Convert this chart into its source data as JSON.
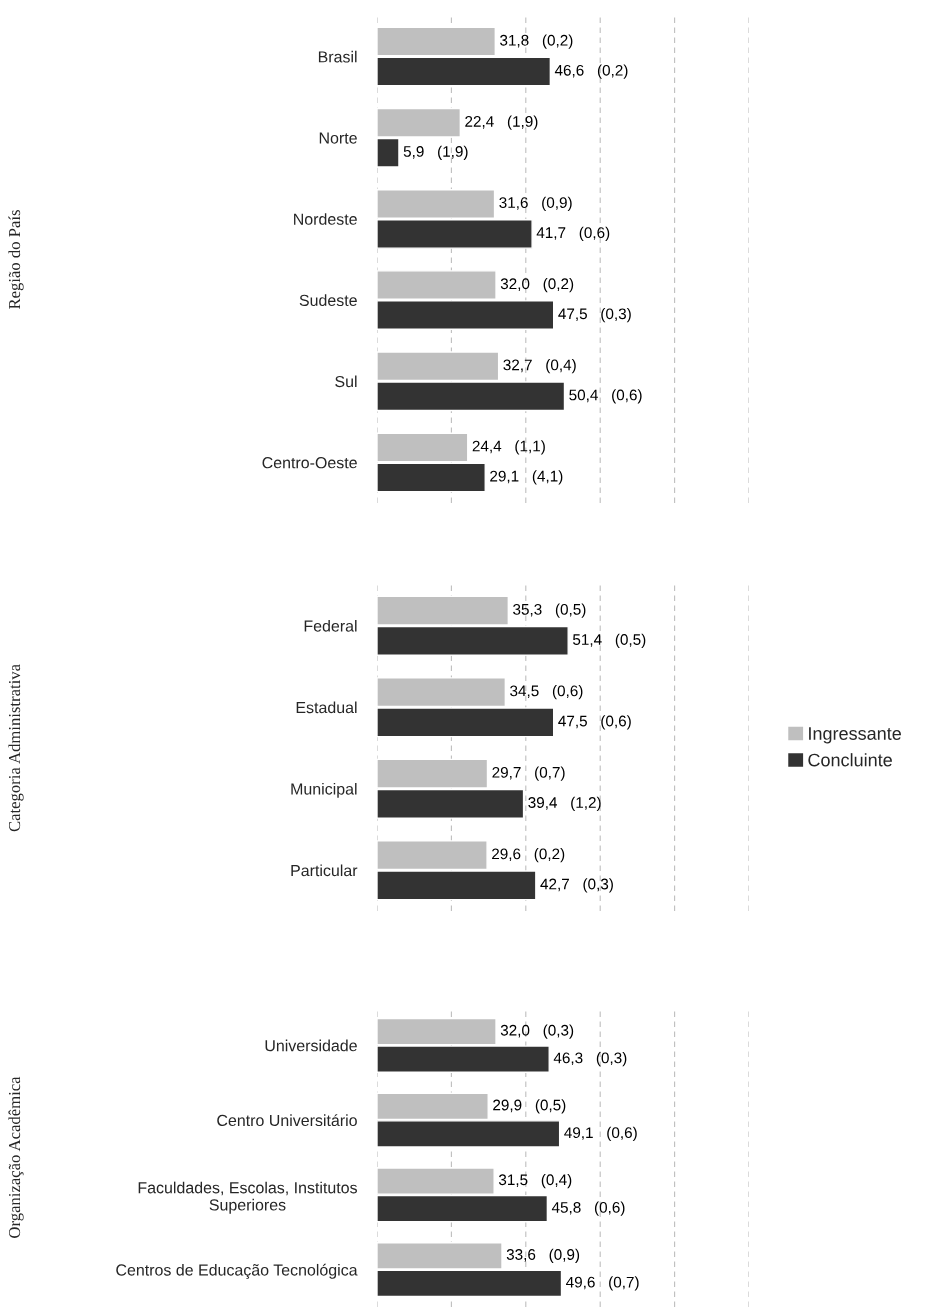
{
  "chart_data": [
    {
      "type": "bar",
      "orientation": "horizontal",
      "ylabel": "Região do País",
      "categories": [
        "Brasil",
        "Norte",
        "Nordeste",
        "Sudeste",
        "Sul",
        "Centro-Oeste"
      ],
      "xlim": [
        0,
        100
      ],
      "xticks": [
        {
          "value": 0,
          "label": null
        },
        {
          "value": 20,
          "label": null
        },
        {
          "value": 40,
          "label": null
        },
        {
          "value": 60,
          "label": null
        },
        {
          "value": 80,
          "label": null
        },
        {
          "value": 100,
          "label": null
        }
      ],
      "grid": "x",
      "tick_labels": "y",
      "series": [
        {
          "color": "#bfbfbf",
          "values": [
            31.8,
            22.4,
            31.6,
            32.0,
            32.7,
            24.4
          ],
          "value_labels": [
            "31,8   (0,2)",
            "22,4   (1,9)",
            "31,6   (0,9)",
            "32,0   (0,2)",
            "32,7   (0,4)",
            "24,4   (1,1)"
          ]
        },
        {
          "color": "#333333",
          "values": [
            46.6,
            5.9,
            41.7,
            47.5,
            50.4,
            29.1
          ],
          "value_labels": [
            "46,6   (0,2)",
            "5,9   (1,9)",
            "41,7   (0,6)",
            "47,5   (0,3)",
            "50,4   (0,6)",
            "29,1   (4,1)"
          ]
        }
      ]
    },
    {
      "type": "bar",
      "orientation": "horizontal",
      "ylabel": "Categoria Administrativa",
      "categories": [
        "Federal",
        "Estadual",
        "Municipal",
        "Particular"
      ],
      "xlim": [
        0,
        100
      ],
      "xticks": [
        {
          "value": 0,
          "label": null
        },
        {
          "value": 20,
          "label": null
        },
        {
          "value": 40,
          "label": null
        },
        {
          "value": 60,
          "label": null
        },
        {
          "value": 80,
          "label": null
        },
        {
          "value": 100,
          "label": null
        }
      ],
      "grid": "x",
      "tick_labels": "y",
      "legend": "right",
      "series": [
        {
          "name": "Ingressante",
          "color": "#bfbfbf",
          "values": [
            35.3,
            34.5,
            29.7,
            29.6
          ],
          "value_labels": [
            "35,3   (0,5)",
            "34,5   (0,6)",
            "29,7   (0,7)",
            "29,6   (0,2)"
          ]
        },
        {
          "name": "Concluinte",
          "color": "#333333",
          "values": [
            51.4,
            47.5,
            39.4,
            42.7
          ],
          "value_labels": [
            "51,4   (0,5)",
            "47,5   (0,6)",
            "39,4   (1,2)",
            "42,7   (0,3)"
          ]
        }
      ]
    },
    {
      "type": "bar",
      "orientation": "horizontal",
      "ylabel": "Organização Acadêmica",
      "categories": [
        "Universidade",
        "Centro Universitário",
        "Faculdades, Escolas, Institutos\nSuperiores",
        "Centros de Educação Tecnológica"
      ],
      "xlim": [
        0,
        100
      ],
      "xticks": [
        {
          "value": 0,
          "label": null
        },
        {
          "value": 20,
          "label": null
        },
        {
          "value": 40,
          "label": null
        },
        {
          "value": 60,
          "label": null
        },
        {
          "value": 80,
          "label": null
        },
        {
          "value": 100,
          "label": null
        }
      ],
      "grid": "x",
      "tick_labels": "y",
      "series": [
        {
          "color": "#bfbfbf",
          "values": [
            32.0,
            29.9,
            31.5,
            33.6
          ],
          "value_labels": [
            "32,0   (0,3)",
            "29,9   (0,5)",
            "31,5   (0,4)",
            "33,6   (0,9)"
          ]
        },
        {
          "color": "#333333",
          "values": [
            46.3,
            49.1,
            45.8,
            49.6
          ],
          "value_labels": [
            "46,3   (0,3)",
            "49,1   (0,6)",
            "45,8   (0,6)",
            "49,6   (0,7)"
          ]
        }
      ]
    }
  ]
}
